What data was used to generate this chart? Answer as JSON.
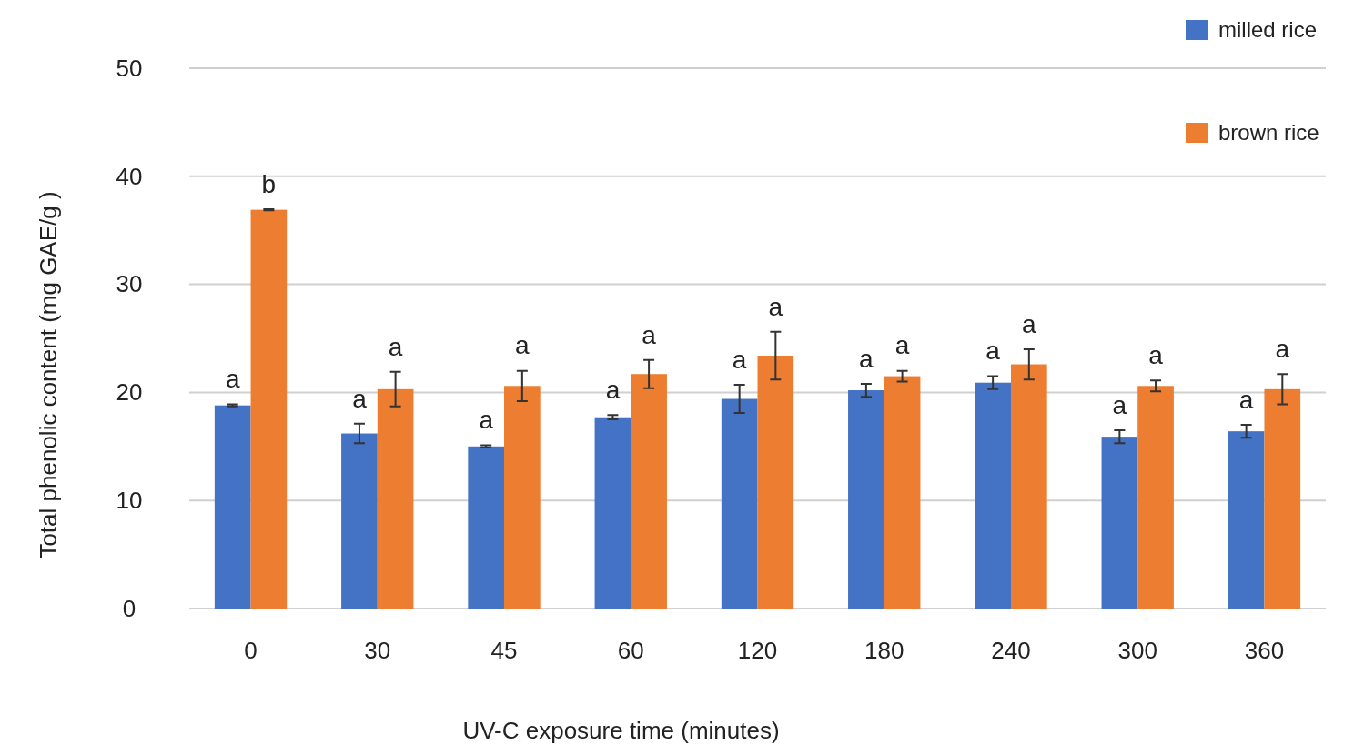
{
  "chart_data": {
    "type": "bar",
    "xlabel": "UV-C exposure time (minutes)",
    "ylabel": "Total phenolic content (mg GAE/g )",
    "categories": [
      "0",
      "30",
      "45",
      "60",
      "120",
      "180",
      "240",
      "300",
      "360"
    ],
    "series": [
      {
        "name": "milled rice",
        "color": "#4472c4",
        "values": [
          18.8,
          16.2,
          15.0,
          17.7,
          19.4,
          20.2,
          20.9,
          15.9,
          16.4
        ],
        "errors": [
          0.1,
          0.9,
          0.1,
          0.2,
          1.3,
          0.6,
          0.6,
          0.6,
          0.6
        ]
      },
      {
        "name": "brown rice",
        "color": "#ed7d31",
        "values": [
          36.9,
          20.3,
          20.6,
          21.7,
          23.4,
          21.5,
          22.6,
          20.6,
          20.3
        ],
        "errors": [
          0.05,
          1.6,
          1.4,
          1.3,
          2.2,
          0.5,
          1.4,
          0.5,
          1.4
        ]
      }
    ],
    "ylim": [
      0,
      50
    ],
    "yticks": [
      0,
      10,
      20,
      30,
      40,
      50
    ],
    "grid": "y",
    "legend": "top right",
    "annotations": [
      {
        "text": "a",
        "x": "0",
        "y": 18.8
      },
      {
        "text": "b",
        "x": "0",
        "y": 36.9
      },
      {
        "text": "a",
        "x": "30",
        "y": 16.2
      },
      {
        "text": "a",
        "x": "30",
        "y": 20.3
      },
      {
        "text": "a",
        "x": "45",
        "y": 15.0
      },
      {
        "text": "a",
        "x": "45",
        "y": 20.6
      },
      {
        "text": "a",
        "x": "60",
        "y": 17.7
      },
      {
        "text": "a",
        "x": "60",
        "y": 21.7
      },
      {
        "text": "a",
        "x": "120",
        "y": 19.4
      },
      {
        "text": "a",
        "x": "120",
        "y": 23.4
      },
      {
        "text": "a",
        "x": "180",
        "y": 20.2
      },
      {
        "text": "a",
        "x": "180",
        "y": 21.5
      },
      {
        "text": "a",
        "x": "240",
        "y": 20.9
      },
      {
        "text": "a",
        "x": "240",
        "y": 22.6
      },
      {
        "text": "a",
        "x": "300",
        "y": 15.9
      },
      {
        "text": "a",
        "x": "300",
        "y": 20.6
      },
      {
        "text": "a",
        "x": "360",
        "y": 16.4
      },
      {
        "text": "a",
        "x": "360",
        "y": 20.3
      }
    ]
  }
}
